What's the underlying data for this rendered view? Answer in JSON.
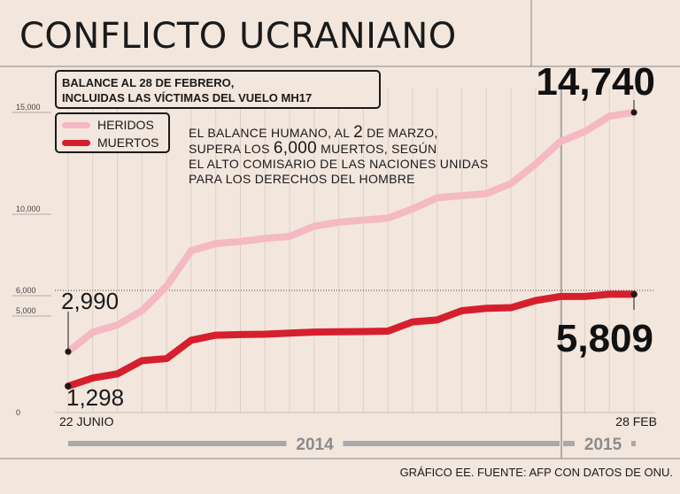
{
  "title": "CONFLICTO UCRANIANO",
  "subtitle": {
    "line1": "BALANCE AL 28 DE FEBRERO,",
    "line2": "INCLUIDAS LAS VÍCTIMAS DEL VUELO MH17"
  },
  "note": {
    "line1_a": "EL BALANCE HUMANO, AL ",
    "line1_b": "2",
    "line1_c": " DE MARZO,",
    "line2_a": "SUPERA LOS ",
    "line2_b": "6,000",
    "line2_c": " MUERTOS, SEGÚN",
    "line3": "EL ALTO COMISARIO DE LAS NACIONES UNIDAS",
    "line4": "PARA LOS DERECHOS DEL HOMBRE"
  },
  "footer": "GRÁFICO EE. FUENTE: AFP CON DATOS DE ONU.",
  "colors": {
    "heridos": "#f4b9c2",
    "muertos": "#d61f2c",
    "background": "#f3e6dd",
    "text": "#1a1a1a",
    "year_band": "#999999"
  },
  "chart_data": {
    "type": "line",
    "title": "CONFLICTO UCRANIANO",
    "xlabel": "",
    "ylabel": "",
    "ylim": [
      0,
      16000
    ],
    "y_ticks": [
      {
        "value": 0,
        "label": "0"
      },
      {
        "value": 5000,
        "label": "5,000"
      },
      {
        "value": 6000,
        "label": "6,000"
      },
      {
        "value": 10000,
        "label": "10,000"
      },
      {
        "value": 15000,
        "label": "15,000"
      }
    ],
    "reference_line": {
      "value": 6000,
      "style": "dotted"
    },
    "x_start_label": "22 JUNIO",
    "x_end_label": "28 FEB",
    "years": [
      {
        "label": "2014",
        "from": 0,
        "to": 20
      },
      {
        "label": "2015",
        "from": 20,
        "to": 23
      }
    ],
    "x": [
      0,
      1,
      2,
      3,
      4,
      5,
      6,
      7,
      8,
      9,
      10,
      11,
      12,
      13,
      14,
      15,
      16,
      17,
      18,
      19,
      20,
      21,
      22,
      23
    ],
    "series": [
      {
        "name": "HERIDOS",
        "values": [
          2990,
          3950,
          4300,
          5000,
          6200,
          7950,
          8300,
          8400,
          8550,
          8650,
          9150,
          9350,
          9450,
          9550,
          10000,
          10550,
          10650,
          10750,
          11250,
          12200,
          13300,
          13800,
          14550,
          14740
        ],
        "start_label": "2,990",
        "end_label": "14,740"
      },
      {
        "name": "MUERTOS",
        "values": [
          1298,
          1700,
          1900,
          2550,
          2650,
          3550,
          3800,
          3830,
          3850,
          3900,
          3950,
          3970,
          3980,
          4000,
          4450,
          4550,
          5000,
          5120,
          5150,
          5500,
          5700,
          5700,
          5809,
          5809
        ],
        "start_label": "1,298",
        "end_label": "5,809"
      }
    ]
  }
}
